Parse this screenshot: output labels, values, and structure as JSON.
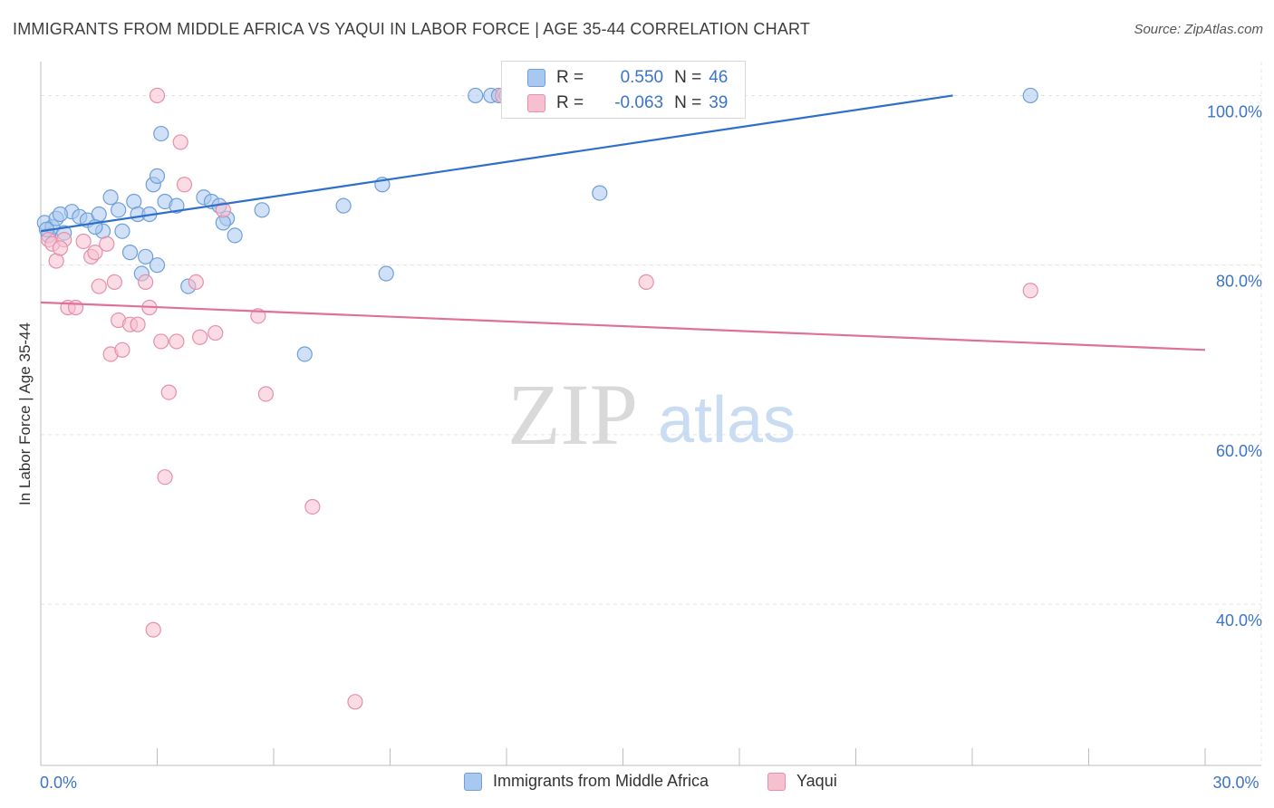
{
  "header": {
    "title": "IMMIGRANTS FROM MIDDLE AFRICA VS YAQUI IN LABOR FORCE | AGE 35-44 CORRELATION CHART",
    "source": "Source: ZipAtlas.com"
  },
  "watermark": {
    "zip": "ZIP",
    "atlas": "atlas"
  },
  "stats": [
    {
      "r_label": "R =",
      "r_value": "0.550",
      "n_label": "N =",
      "n_value": "46",
      "color": "#a9c8f0",
      "border": "#6f9fd8"
    },
    {
      "r_label": "R =",
      "r_value": "-0.063",
      "n_label": "N =",
      "n_value": "39",
      "color": "#f7c0d0",
      "border": "#e58fab"
    }
  ],
  "chart_data": {
    "type": "scatter",
    "title": "IMMIGRANTS FROM MIDDLE AFRICA VS YAQUI IN LABOR FORCE | AGE 35-44 CORRELATION CHART",
    "xlabel": "",
    "ylabel": "In Labor Force | Age 35-44",
    "xlim": [
      0,
      30
    ],
    "ylim": [
      21,
      104
    ],
    "x_tick_labels": [
      {
        "value": 0,
        "label": "0.0%"
      },
      {
        "value": 30,
        "label": "30.0%"
      }
    ],
    "y_tick_labels": [
      {
        "value": 40,
        "label": "40.0%"
      },
      {
        "value": 60,
        "label": "60.0%"
      },
      {
        "value": 80,
        "label": "80.0%"
      },
      {
        "value": 100,
        "label": "100.0%"
      }
    ],
    "grid": true,
    "legend_position": "bottom",
    "series": [
      {
        "name": "Immigrants from Middle Africa",
        "color": "#6f9fd8",
        "fill": "#a9c8f0",
        "trend_color": "#2f6fcc",
        "trend": {
          "x": [
            0,
            23.5
          ],
          "y": [
            84.0,
            100.0
          ]
        },
        "points": [
          [
            0.1,
            85.0
          ],
          [
            0.2,
            83.5
          ],
          [
            0.3,
            84.5
          ],
          [
            0.4,
            85.5
          ],
          [
            0.6,
            83.8
          ],
          [
            0.8,
            86.3
          ],
          [
            1.0,
            85.7
          ],
          [
            1.2,
            85.3
          ],
          [
            1.5,
            86.0
          ],
          [
            1.6,
            84.0
          ],
          [
            1.8,
            88.0
          ],
          [
            2.0,
            86.5
          ],
          [
            2.1,
            84.0
          ],
          [
            2.3,
            81.5
          ],
          [
            2.4,
            87.5
          ],
          [
            2.5,
            86.0
          ],
          [
            2.6,
            79.0
          ],
          [
            2.8,
            86.0
          ],
          [
            2.9,
            89.5
          ],
          [
            3.0,
            90.5
          ],
          [
            3.1,
            95.5
          ],
          [
            3.2,
            87.5
          ],
          [
            3.5,
            87.0
          ],
          [
            3.8,
            77.5
          ],
          [
            4.2,
            88.0
          ],
          [
            4.4,
            87.5
          ],
          [
            4.6,
            87.0
          ],
          [
            4.8,
            85.5
          ],
          [
            5.0,
            83.5
          ],
          [
            5.7,
            86.5
          ],
          [
            6.8,
            69.5
          ],
          [
            7.8,
            87.0
          ],
          [
            8.8,
            89.5
          ],
          [
            8.9,
            79.0
          ],
          [
            11.2,
            100.0
          ],
          [
            11.6,
            100.0
          ],
          [
            11.8,
            100.0
          ],
          [
            12.0,
            100.0
          ],
          [
            14.4,
            88.5
          ],
          [
            25.5,
            100.0
          ],
          [
            0.15,
            84.2
          ],
          [
            1.4,
            84.5
          ],
          [
            0.5,
            86.0
          ],
          [
            3.0,
            80.0
          ],
          [
            4.7,
            85.0
          ],
          [
            2.7,
            81.0
          ]
        ]
      },
      {
        "name": "Yaqui",
        "color": "#e58fab",
        "fill": "#f7c0d0",
        "trend_color": "#e0709a",
        "trend": {
          "x": [
            0,
            30
          ],
          "y": [
            75.6,
            70.0
          ]
        },
        "points": [
          [
            0.2,
            83.0
          ],
          [
            0.3,
            82.5
          ],
          [
            0.4,
            80.5
          ],
          [
            0.6,
            83.0
          ],
          [
            0.7,
            75.0
          ],
          [
            0.9,
            75.0
          ],
          [
            1.1,
            82.8
          ],
          [
            1.3,
            81.0
          ],
          [
            1.4,
            81.5
          ],
          [
            1.5,
            77.5
          ],
          [
            1.7,
            82.5
          ],
          [
            1.8,
            69.5
          ],
          [
            1.9,
            78.0
          ],
          [
            2.0,
            73.5
          ],
          [
            2.1,
            70.0
          ],
          [
            2.3,
            73.0
          ],
          [
            2.5,
            73.0
          ],
          [
            2.7,
            78.0
          ],
          [
            2.8,
            75.0
          ],
          [
            2.9,
            37.0
          ],
          [
            3.0,
            100.0
          ],
          [
            3.1,
            71.0
          ],
          [
            3.2,
            55.0
          ],
          [
            3.3,
            65.0
          ],
          [
            3.5,
            71.0
          ],
          [
            3.6,
            94.5
          ],
          [
            3.7,
            89.5
          ],
          [
            4.0,
            78.0
          ],
          [
            4.1,
            71.5
          ],
          [
            4.5,
            72.0
          ],
          [
            4.7,
            86.5
          ],
          [
            5.6,
            74.0
          ],
          [
            5.8,
            64.8
          ],
          [
            7.0,
            51.5
          ],
          [
            8.1,
            28.5
          ],
          [
            11.9,
            100.0
          ],
          [
            15.6,
            78.0
          ],
          [
            25.5,
            77.0
          ],
          [
            0.5,
            82.0
          ]
        ]
      }
    ]
  }
}
